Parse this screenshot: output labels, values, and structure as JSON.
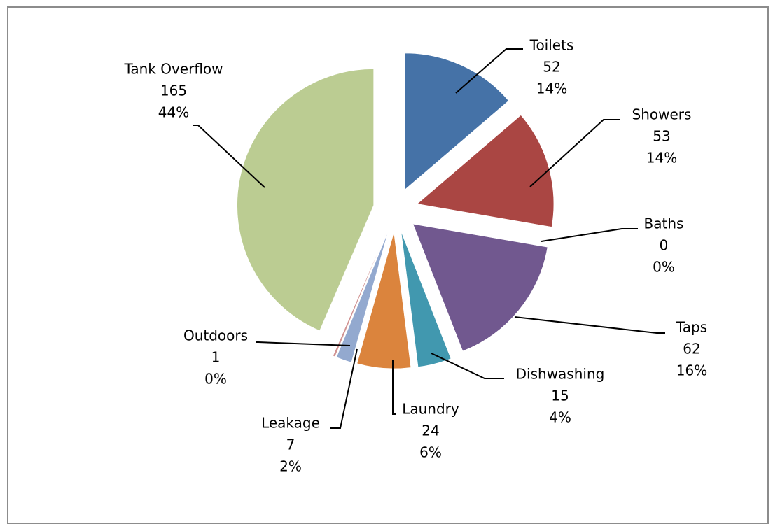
{
  "chart_data": {
    "type": "pie",
    "exploded": true,
    "legend": "none",
    "slices": [
      {
        "category": "Toilets",
        "value": 52,
        "percent": "14%",
        "color": "#4572A7"
      },
      {
        "category": "Showers",
        "value": 53,
        "percent": "14%",
        "color": "#AA4643"
      },
      {
        "category": "Baths",
        "value": 0,
        "percent": "0%",
        "color": "#89A54E"
      },
      {
        "category": "Taps",
        "value": 62,
        "percent": "16%",
        "color": "#71588F"
      },
      {
        "category": "Dishwashing",
        "value": 15,
        "percent": "4%",
        "color": "#4198AF"
      },
      {
        "category": "Laundry",
        "value": 24,
        "percent": "6%",
        "color": "#DB843D"
      },
      {
        "category": "Leakage",
        "value": 7,
        "percent": "2%",
        "color": "#93A9CF"
      },
      {
        "category": "Outdoors",
        "value": 1,
        "percent": "0%",
        "color": "#D19392"
      },
      {
        "category": "Tank Overflow",
        "value": 165,
        "percent": "44%",
        "color": "#BBCC92"
      }
    ]
  }
}
